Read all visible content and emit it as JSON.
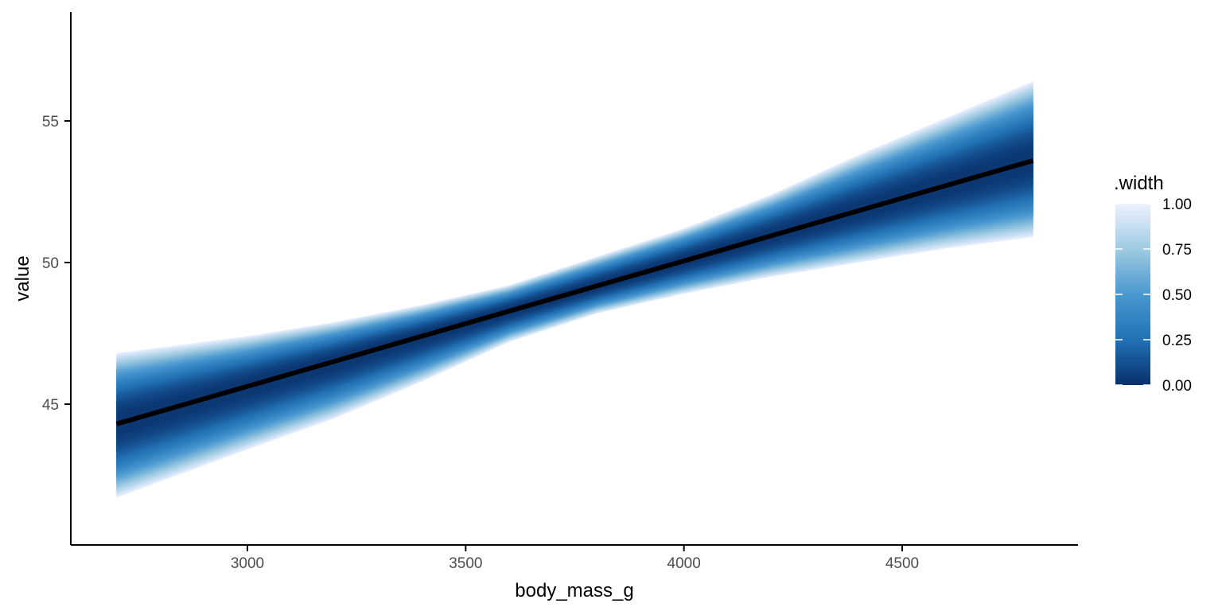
{
  "chart_data": {
    "type": "area",
    "xlabel": "body_mass_g",
    "ylabel": "value",
    "xlim": [
      2290,
      4600
    ],
    "ylim": [
      40.2,
      58.8
    ],
    "x_ticks": [
      {
        "value": 3000,
        "label": "3000"
      },
      {
        "value": 3500,
        "label": "3500"
      },
      {
        "value": 4000,
        "label": "4000"
      },
      {
        "value": 4500,
        "label": "4500"
      }
    ],
    "y_ticks": [
      {
        "value": 45,
        "label": "45"
      },
      {
        "value": 50,
        "label": "50"
      },
      {
        "value": 55,
        "label": "55"
      }
    ],
    "median_line": {
      "x": [
        2700,
        4800
      ],
      "y": [
        44.3,
        53.6
      ]
    },
    "band_outer_bounds": {
      "x": [
        2700,
        3000,
        3200,
        3400,
        3600,
        3800,
        4000,
        4200,
        4400,
        4600,
        4800
      ],
      "upper": [
        46.8,
        47.4,
        47.9,
        48.5,
        49.2,
        50.2,
        51.2,
        52.4,
        53.8,
        55.1,
        56.4
      ],
      "lower": [
        41.7,
        43.4,
        44.5,
        45.8,
        47.2,
        48.2,
        48.9,
        49.5,
        50.0,
        50.5,
        50.9
      ]
    },
    "legend": {
      "title": ".width",
      "type": "colorbar",
      "range": [
        0,
        1
      ],
      "breaks": [
        {
          "value": 1.0,
          "label": "1.00"
        },
        {
          "value": 0.75,
          "label": "0.75"
        },
        {
          "value": 0.5,
          "label": "0.50"
        },
        {
          "value": 0.25,
          "label": "0.25"
        },
        {
          "value": 0.0,
          "label": "0.00"
        }
      ],
      "colors": {
        "low": "#08306b",
        "mid": "#6baed6",
        "high": "#e7efff"
      }
    },
    "grid": false,
    "legend_position": "right"
  }
}
